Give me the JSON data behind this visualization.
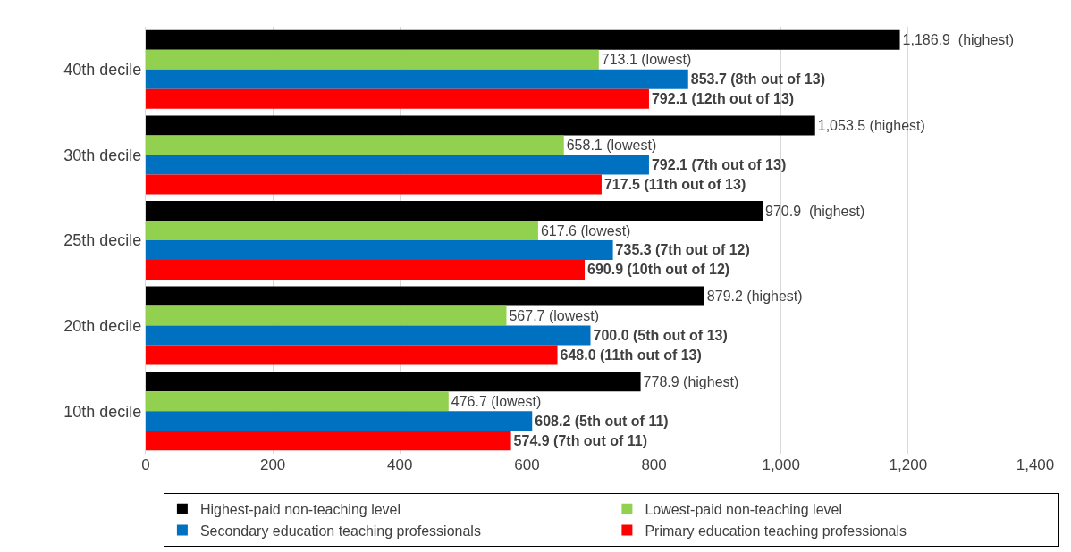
{
  "chart_data": {
    "type": "bar",
    "orientation": "horizontal",
    "categories": [
      "40th decile",
      "30th decile",
      "25th decile",
      "20th decile",
      "10th decile"
    ],
    "series": [
      {
        "name": "Highest-paid non-teaching level",
        "color": "#000000",
        "values": [
          1186.9,
          1053.5,
          970.9,
          879.2,
          778.9
        ],
        "value_labels": [
          "1,186.9  (highest)",
          "1,053.5 (highest)",
          "970.9  (highest)",
          "879.2 (highest)",
          "778.9 (highest)"
        ]
      },
      {
        "name": "Lowest-paid non-teaching level",
        "color": "#92d050",
        "values": [
          713.1,
          658.1,
          617.6,
          567.7,
          476.7
        ],
        "value_labels": [
          "713.1 (lowest)",
          "658.1 (lowest)",
          "617.6 (lowest)",
          "567.7 (lowest)",
          "476.7 (lowest)"
        ]
      },
      {
        "name": "Secondary education teaching professionals",
        "color": "#0070c0",
        "values": [
          853.7,
          792.1,
          735.3,
          700.0,
          608.2
        ],
        "value_labels": [
          "853.7 (8th out of 13)",
          "792.1 (7th out of 13)",
          "735.3 (7th out of 12)",
          "700.0 (5th out of 13)",
          "608.2 (5th out of 11)"
        ]
      },
      {
        "name": "Primary education teaching professionals",
        "color": "#ff0000",
        "values": [
          792.1,
          717.5,
          690.9,
          648.0,
          574.9
        ],
        "value_labels": [
          "792.1 (12th out of 13)",
          "717.5 (11th out of 13)",
          "690.9 (10th out of 12)",
          "648.0 (11th out of 13)",
          "574.9 (7th out of 11)"
        ]
      }
    ],
    "xlim": [
      0,
      1400
    ],
    "xticks": [
      0,
      200,
      400,
      600,
      800,
      {
        "value": 1000,
        "label": "1,000"
      },
      {
        "value": 1200,
        "label": "1,200"
      },
      {
        "value": 1400,
        "label": "1,400"
      }
    ],
    "grid": "x",
    "legend": "bottom"
  }
}
